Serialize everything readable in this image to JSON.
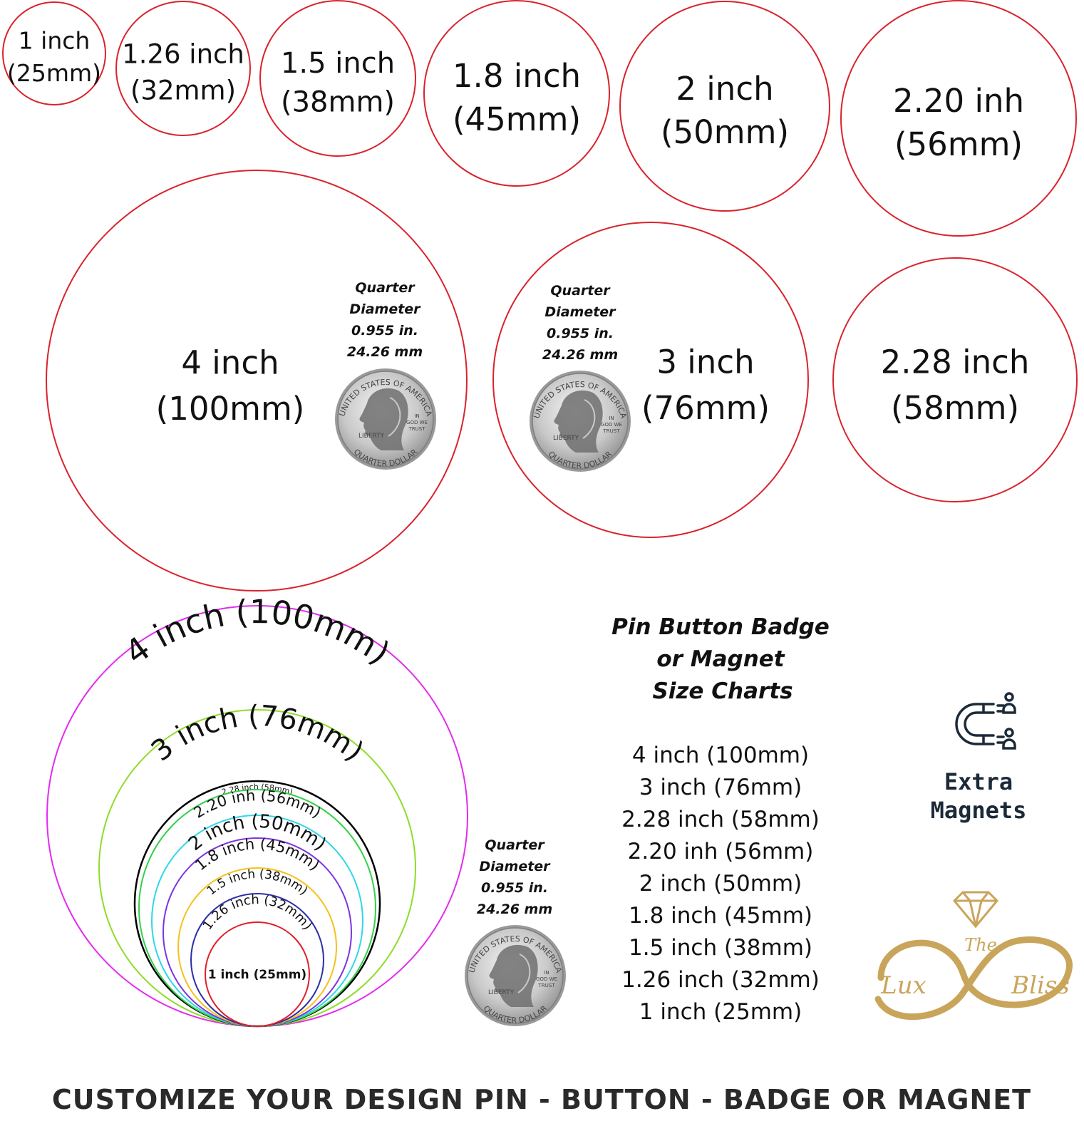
{
  "colors": {
    "red_outline": "#d9232d",
    "gold": "#c9a55b",
    "navy": "#1c2a38",
    "nest": [
      "#e22cf0",
      "#8fdc2a",
      "#000000",
      "#33d04b",
      "#2fd7e8",
      "#7b35e0",
      "#f4c21c",
      "#2b2fa8",
      "#e0202a"
    ]
  },
  "size_circles": [
    {
      "line1": "1 inch",
      "line2": "(25mm)"
    },
    {
      "line1": "1.26 inch",
      "line2": "(32mm)"
    },
    {
      "line1": "1.5 inch",
      "line2": "(38mm)"
    },
    {
      "line1": "1.8 inch",
      "line2": "(45mm)"
    },
    {
      "line1": "2 inch",
      "line2": "(50mm)"
    },
    {
      "line1": "2.20 inh",
      "line2": "(56mm)"
    },
    {
      "line1": "4 inch",
      "line2": "(100mm)"
    },
    {
      "line1": "3 inch",
      "line2": "(76mm)"
    },
    {
      "line1": "2.28 inch",
      "line2": "(58mm)"
    }
  ],
  "quarter_caption": [
    "Quarter",
    "Diameter",
    "0.955 in.",
    "24.26 mm"
  ],
  "coin": {
    "rim_text": "UNITED STATES OF AMERICA",
    "bottom_text": "QUARTER DOLLAR",
    "liberty": "LIBERTY",
    "motto": [
      "IN",
      "GOD WE",
      "TRUST"
    ]
  },
  "nested_labels": [
    "4 inch (100mm)",
    "3 inch (76mm)",
    "2.28 inch (58mm)",
    "2.20 inh (56mm)",
    "2 inch (50mm)",
    "1.8 inch (45mm)",
    "1.5 inch (38mm)",
    "1.26 inch (32mm)",
    "1 inch (25mm)"
  ],
  "size_chart": {
    "title": [
      "Pin Button Badge",
      "or Magnet",
      "Size Charts"
    ],
    "items": [
      "4 inch (100mm)",
      "3 inch (76mm)",
      "2.28 inch (58mm)",
      "2.20 inh (56mm)",
      "2 inch (50mm)",
      "1.8 inch (45mm)",
      "1.5 inch (38mm)",
      "1.26 inch (32mm)",
      "1 inch (25mm)"
    ]
  },
  "extra_magnets": {
    "icon": "magnet-icon",
    "line1": "Extra",
    "line2": "Magnets"
  },
  "logo": {
    "the": "The",
    "lux": "Lux",
    "bliss": "Bliss",
    "icon": "diamond-icon"
  },
  "footer": "CUSTOMIZE YOUR DESIGN PIN - BUTTON - BADGE OR MAGNET"
}
